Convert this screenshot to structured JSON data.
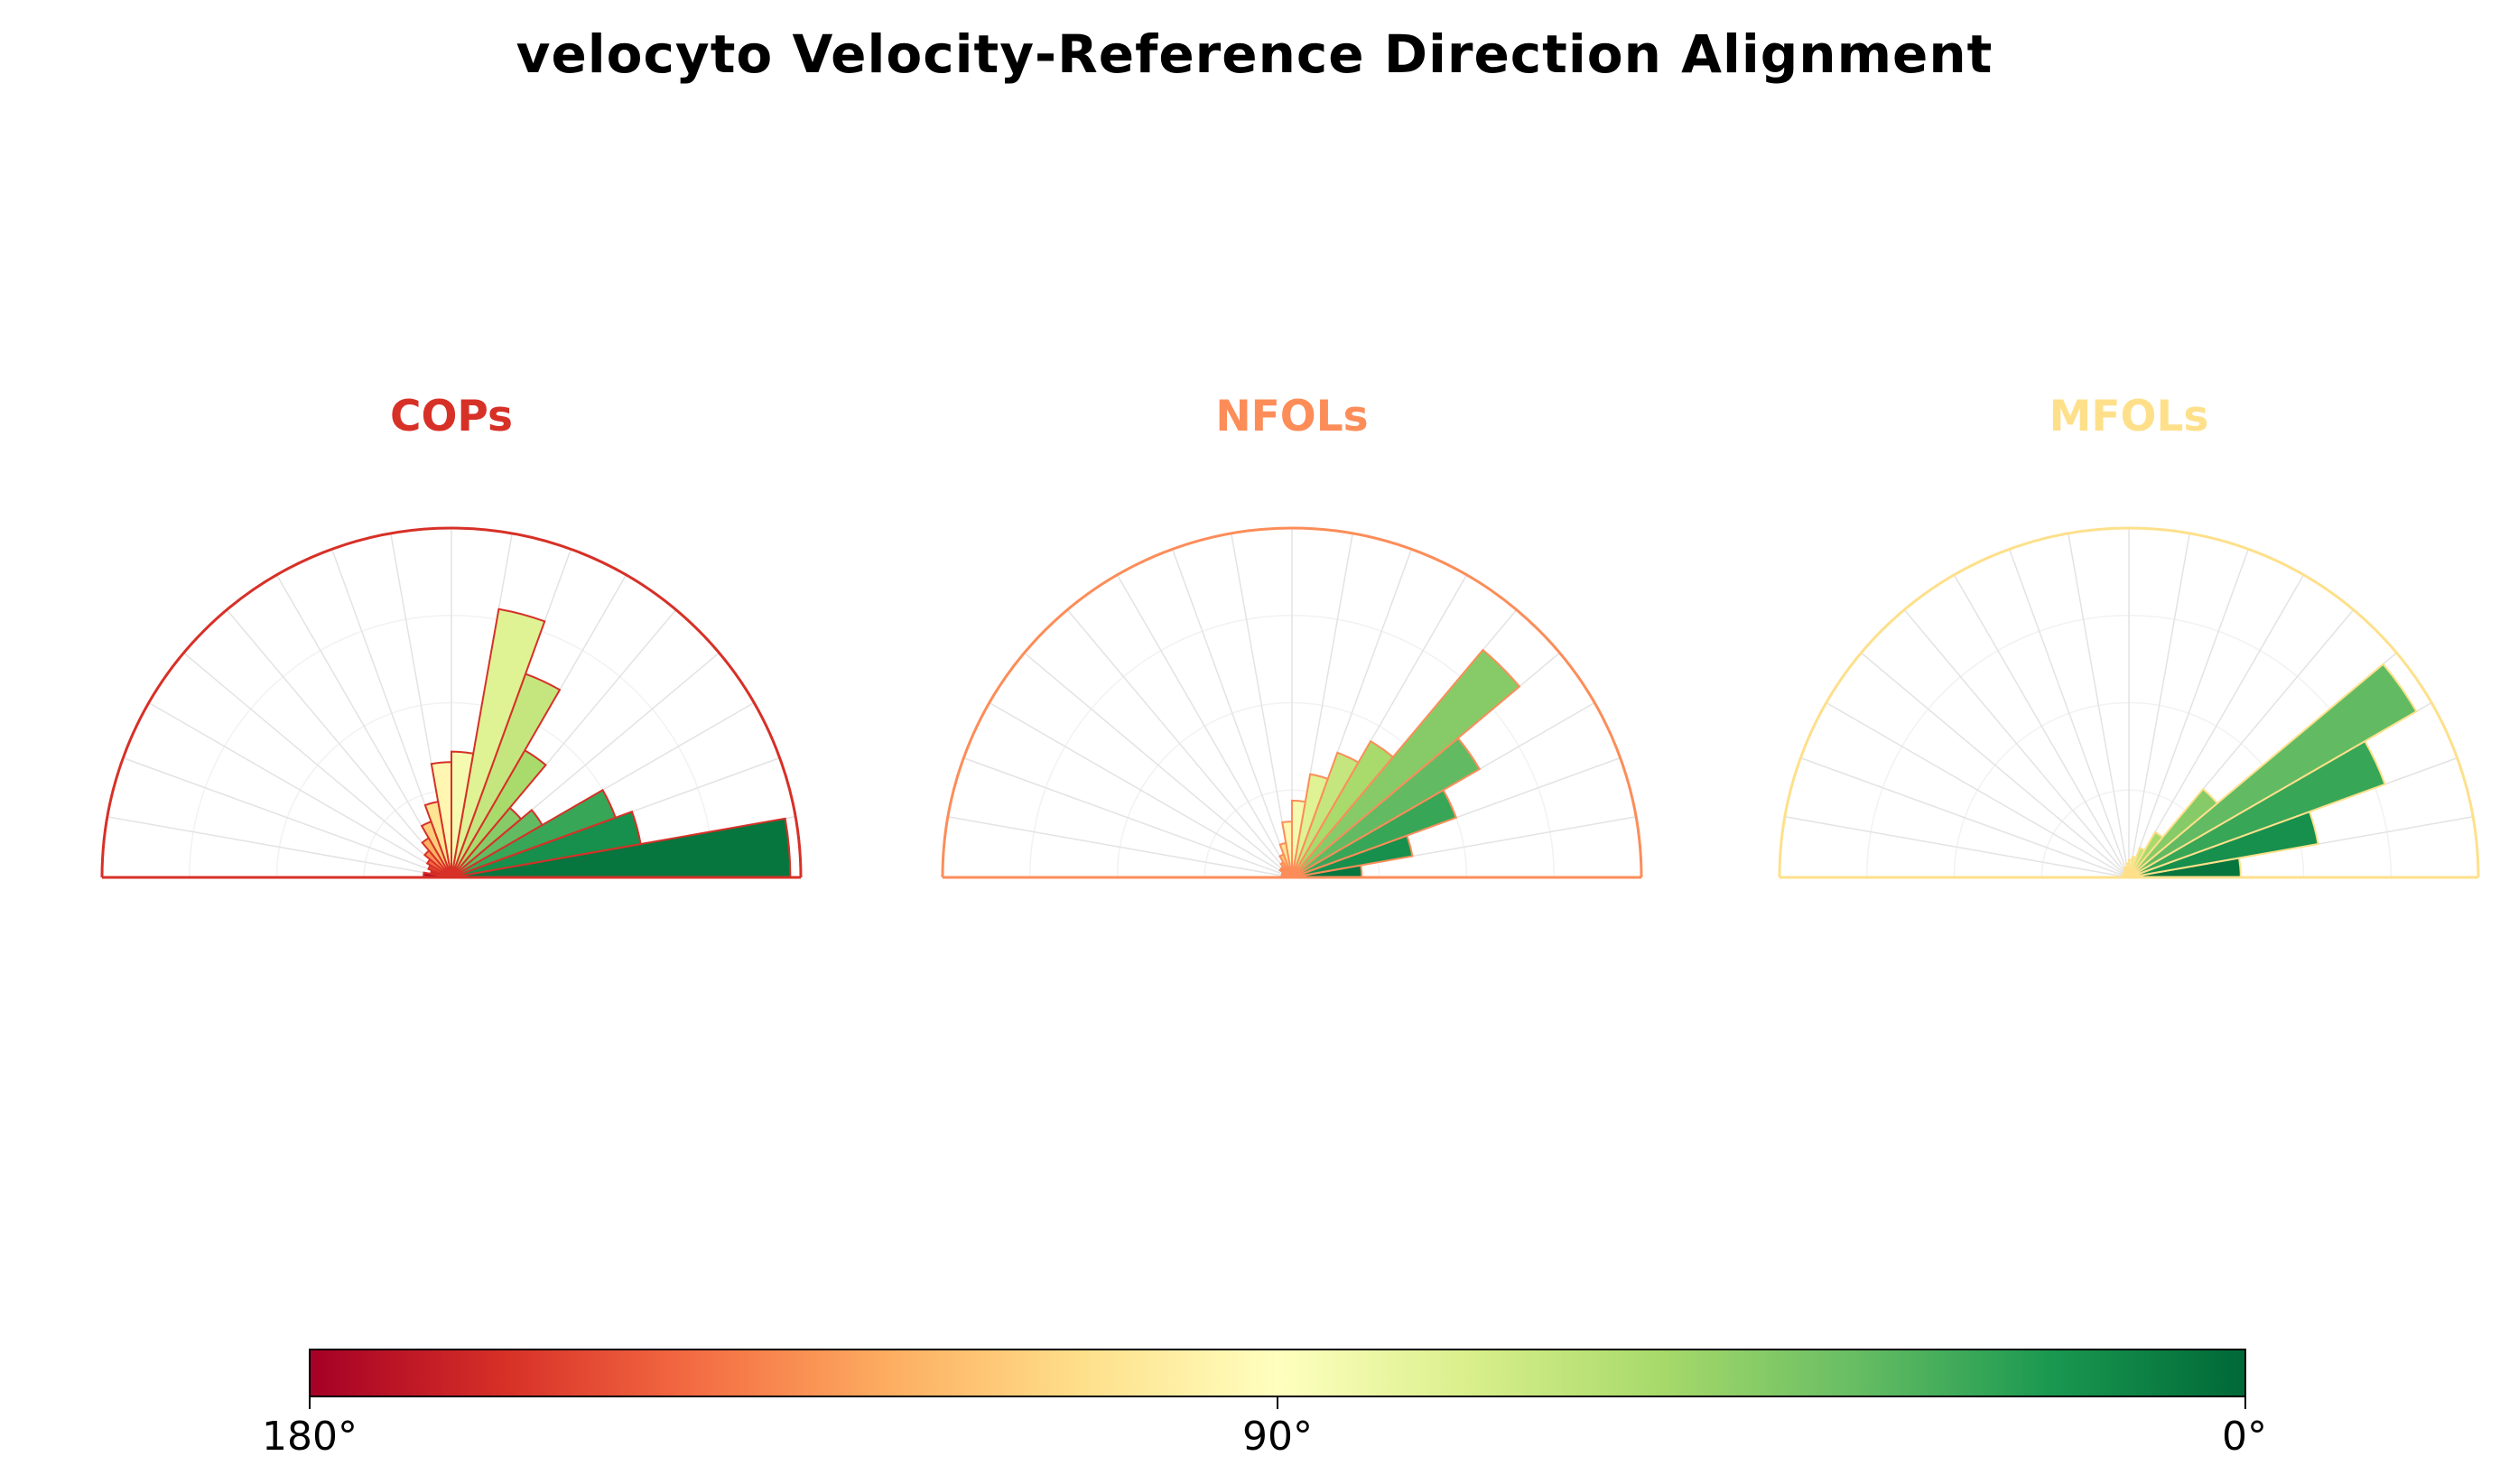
{
  "title": "velocyto Velocity-Reference Direction Alignment",
  "chart_data": [
    {
      "type": "polar_histogram",
      "title": "COPs",
      "accent": "#d73027",
      "theta_range_deg": [
        0,
        180
      ],
      "rlim": [
        0,
        1
      ],
      "bin_width_deg": 10,
      "bin_centers_deg": [
        5,
        15,
        25,
        35,
        45,
        55,
        65,
        75,
        85,
        95,
        105,
        115,
        125,
        135,
        145,
        155,
        165,
        175
      ],
      "values": [
        0.97,
        0.55,
        0.5,
        0.3,
        0.26,
        0.42,
        0.62,
        0.78,
        0.36,
        0.33,
        0.22,
        0.17,
        0.13,
        0.1,
        0.08,
        0.07,
        0.06,
        0.08
      ]
    },
    {
      "type": "polar_histogram",
      "title": "NFOLs",
      "accent": "#fc8d59",
      "theta_range_deg": [
        0,
        180
      ],
      "rlim": [
        0,
        1
      ],
      "bin_width_deg": 10,
      "bin_centers_deg": [
        5,
        15,
        25,
        35,
        45,
        55,
        65,
        75,
        85,
        95,
        105,
        115,
        125,
        135,
        145,
        155,
        165,
        175
      ],
      "values": [
        0.2,
        0.35,
        0.5,
        0.62,
        0.85,
        0.45,
        0.38,
        0.3,
        0.22,
        0.16,
        0.1,
        0.07,
        0.05,
        0.04,
        0.04,
        0.03,
        0.03,
        0.02
      ]
    },
    {
      "type": "polar_histogram",
      "title": "MFOLs",
      "accent": "#fee08b",
      "theta_range_deg": [
        0,
        180
      ],
      "rlim": [
        0,
        1
      ],
      "bin_width_deg": 10,
      "bin_centers_deg": [
        5,
        15,
        25,
        35,
        45,
        55,
        65,
        75,
        85,
        95,
        105,
        115,
        125,
        135,
        145,
        155,
        165,
        175
      ],
      "values": [
        0.32,
        0.55,
        0.78,
        0.95,
        0.33,
        0.15,
        0.09,
        0.06,
        0.05,
        0.04,
        0.03,
        0.03,
        0.02,
        0.02,
        0.02,
        0.02,
        0.02,
        0.02
      ]
    }
  ],
  "colorbar": {
    "colormap": "RdYlGn (angle: 180°=red → 0°=green)",
    "stops": [
      "#a50026",
      "#d73027",
      "#f46d43",
      "#fdae61",
      "#fee08b",
      "#ffffbf",
      "#d9ef8b",
      "#a6d96a",
      "#66bd63",
      "#1a9850",
      "#006837"
    ],
    "label_left": "180°",
    "label_mid": "90°",
    "label_right": "0°"
  }
}
